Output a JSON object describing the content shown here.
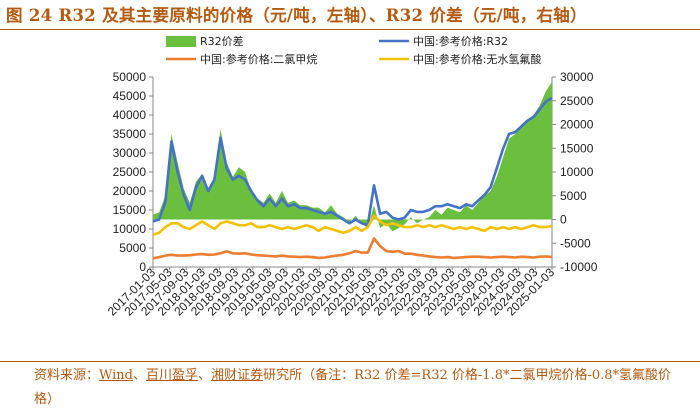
{
  "title": "图 24 R32 及其主要原料的价格（元/吨，左轴）、R32 价差（元/吨，右轴）",
  "source": {
    "prefix": "资料来源：",
    "orgs": [
      "Wind",
      "百川盈孚",
      "湘财证券"
    ],
    "seps": [
      "、",
      "、"
    ],
    "suffix": "研究所（备注：R32 价差=R32 价格-1.8*二氯甲烷价格-0.8*氢氟酸价格）"
  },
  "chart_data": {
    "type": "line",
    "left_axis": {
      "ticks": [
        0,
        5000,
        10000,
        15000,
        20000,
        25000,
        30000,
        35000,
        40000,
        45000,
        50000
      ],
      "range": [
        0,
        50000
      ]
    },
    "right_axis": {
      "ticks": [
        -10000,
        -5000,
        0,
        5000,
        10000,
        15000,
        20000,
        25000,
        30000
      ],
      "range": [
        -10000,
        30000
      ]
    },
    "x_tick_labels": [
      "2017-01-03",
      "2017-05-03",
      "2017-09-03",
      "2018-01-03",
      "2018-05-03",
      "2018-09-03",
      "2019-01-03",
      "2019-05-03",
      "2019-09-03",
      "2020-01-03",
      "2020-05-03",
      "2020-09-03",
      "2021-01-03",
      "2021-05-03",
      "2021-09-03",
      "2022-01-03",
      "2022-05-03",
      "2022-09-03",
      "2023-01-03",
      "2023-05-03",
      "2023-09-03",
      "2024-01-03",
      "2024-05-03",
      "2024-09-03",
      "2025-01-03"
    ],
    "series": [
      {
        "name": "R32价差",
        "type": "area",
        "axis": "right",
        "color": "#6abf3f",
        "values": [
          1000,
          1500,
          5000,
          18000,
          12000,
          6500,
          3500,
          8000,
          9500,
          6000,
          9000,
          19000,
          12000,
          9000,
          11000,
          10000,
          6000,
          4500,
          3500,
          5500,
          3500,
          6000,
          3500,
          4000,
          3000,
          3000,
          2500,
          2500,
          1500,
          3000,
          1200,
          500,
          -600,
          800,
          -800,
          -1800,
          3000,
          -1800,
          -800,
          -2500,
          -1800,
          -1000,
          500,
          -800,
          0,
          500,
          2000,
          1000,
          2500,
          2000,
          1500,
          3000,
          2000,
          3500,
          5000,
          6000,
          9000,
          13000,
          17000,
          18000,
          19500,
          21000,
          22000,
          24000,
          27000,
          29000
        ]
      },
      {
        "name": "中国:参考价格:R32",
        "type": "line",
        "axis": "left",
        "color": "#4472c4",
        "values": [
          12000,
          12500,
          17000,
          33000,
          25000,
          19000,
          15000,
          21000,
          24000,
          20000,
          23000,
          34000,
          26000,
          23000,
          24000,
          23000,
          20000,
          17500,
          16000,
          18000,
          16000,
          18000,
          16000,
          16500,
          15500,
          15500,
          15000,
          14500,
          14000,
          14500,
          13500,
          12500,
          11500,
          12500,
          11500,
          11000,
          21500,
          14000,
          14500,
          13000,
          12500,
          13000,
          15000,
          14500,
          14500,
          15000,
          16000,
          16000,
          16500,
          16000,
          15500,
          16500,
          16000,
          17500,
          19000,
          21000,
          26000,
          31000,
          35000,
          35500,
          37000,
          38500,
          39500,
          41500,
          43500,
          44500
        ]
      },
      {
        "name": "中国:参考价格:二氯甲烷",
        "type": "line",
        "axis": "left",
        "color": "#ed7d31",
        "values": [
          2300,
          2600,
          3000,
          3200,
          3000,
          3000,
          3100,
          3300,
          3400,
          3200,
          3300,
          3600,
          4100,
          3600,
          3500,
          3600,
          3300,
          3100,
          3000,
          2900,
          2800,
          3000,
          2800,
          2700,
          2600,
          2700,
          2600,
          2400,
          2500,
          2800,
          3000,
          3200,
          3600,
          4200,
          3800,
          3800,
          7500,
          5500,
          4200,
          4000,
          4200,
          3500,
          3500,
          3200,
          3000,
          2800,
          2600,
          2500,
          2600,
          2400,
          2500,
          2600,
          2700,
          2700,
          2600,
          2500,
          2600,
          2700,
          2600,
          2500,
          2700,
          2600,
          2500,
          2700,
          2800,
          2600
        ]
      },
      {
        "name": "中国:参考价格:无水氢氟酸",
        "type": "line",
        "axis": "left",
        "color": "#f2c200",
        "values": [
          8500,
          9000,
          10500,
          11500,
          11500,
          10500,
          10000,
          11000,
          12000,
          11000,
          10000,
          11500,
          12000,
          11500,
          11000,
          11000,
          11500,
          10500,
          10500,
          11000,
          10500,
          10000,
          10500,
          10000,
          10500,
          11000,
          10500,
          9500,
          10500,
          10000,
          9500,
          9000,
          9500,
          10500,
          9500,
          10500,
          13500,
          12000,
          11000,
          11500,
          11000,
          10500,
          10500,
          11000,
          10500,
          11000,
          10500,
          11000,
          10500,
          10000,
          10500,
          10000,
          10500,
          10000,
          9500,
          10500,
          10000,
          10500,
          10000,
          10500,
          10000,
          10500,
          11000,
          10500,
          10500,
          10800
        ]
      }
    ]
  }
}
